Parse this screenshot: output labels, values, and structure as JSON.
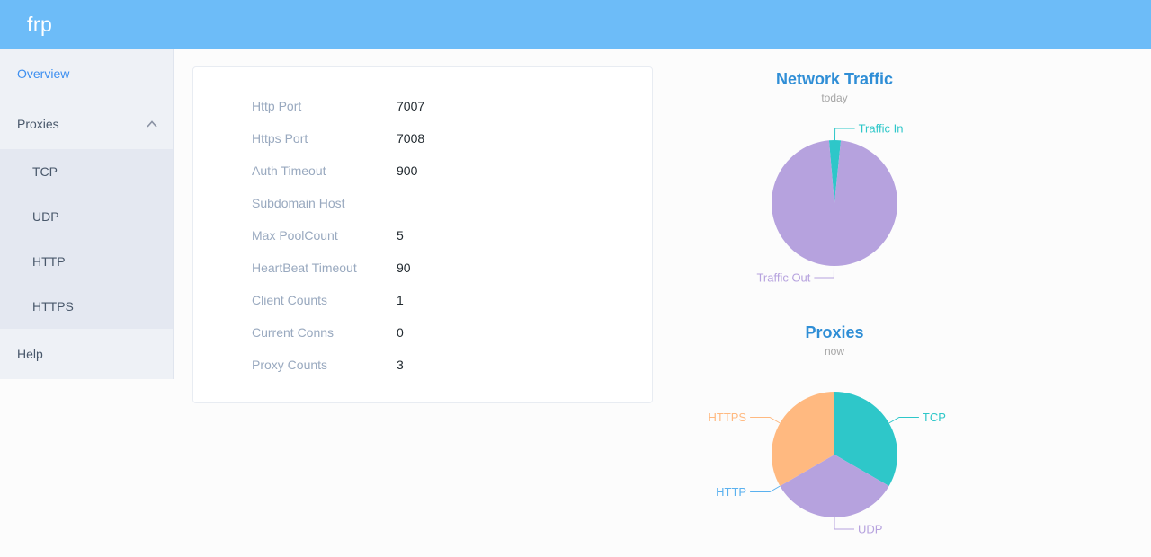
{
  "header": {
    "logo": "frp"
  },
  "sidebar": {
    "items": [
      {
        "id": "overview",
        "label": "Overview",
        "active": true
      },
      {
        "id": "proxies",
        "label": "Proxies",
        "expanded": true
      },
      {
        "id": "help",
        "label": "Help"
      }
    ],
    "proxies_children": [
      "TCP",
      "UDP",
      "HTTP",
      "HTTPS"
    ]
  },
  "server_info": {
    "rows": [
      {
        "label": "Http Port",
        "value": "7007"
      },
      {
        "label": "Https Port",
        "value": "7008"
      },
      {
        "label": "Auth Timeout",
        "value": "900"
      },
      {
        "label": "Subdomain Host",
        "value": ""
      },
      {
        "label": "Max PoolCount",
        "value": "5"
      },
      {
        "label": "HeartBeat Timeout",
        "value": "90"
      },
      {
        "label": "Client Counts",
        "value": "1"
      },
      {
        "label": "Current Conns",
        "value": "0"
      },
      {
        "label": "Proxy Counts",
        "value": "3"
      }
    ]
  },
  "chart_data": [
    {
      "type": "pie",
      "title": "Network Traffic",
      "subtitle": "today",
      "start_angle": -5,
      "unit": "percent (estimated from slice angles)",
      "series": [
        {
          "name": "Traffic In",
          "value": 3,
          "color": "#2ec7c9"
        },
        {
          "name": "Traffic Out",
          "value": 97,
          "color": "#b6a2de"
        }
      ],
      "legend_position": "callout-labels"
    },
    {
      "type": "pie",
      "title": "Proxies",
      "subtitle": "now",
      "start_angle": 0,
      "unit": "proxy count",
      "series": [
        {
          "name": "TCP",
          "value": 1,
          "color": "#2ec7c9"
        },
        {
          "name": "UDP",
          "value": 1,
          "color": "#b6a2de"
        },
        {
          "name": "HTTP",
          "value": 0,
          "color": "#5ab1ef"
        },
        {
          "name": "HTTPS",
          "value": 1,
          "color": "#ffb980"
        }
      ],
      "legend_position": "callout-labels"
    }
  ]
}
